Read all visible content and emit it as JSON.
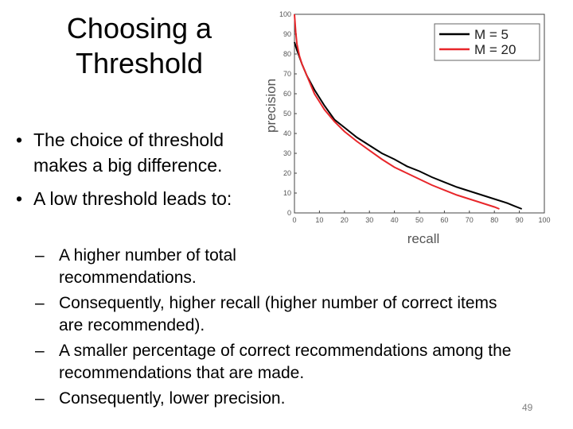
{
  "slide": {
    "title_line1": "Choosing a",
    "title_line2": "Threshold",
    "bullets": [
      "The choice of threshold makes a big difference.",
      "A low threshold leads to:"
    ],
    "subbullets": [
      "A higher number of total recommendations.",
      "Consequently, higher recall (higher number of correct items are recommended).",
      "A smaller percentage of correct recommendations among the recommendations that are made.",
      "Consequently, lower precision."
    ],
    "page_number": "49"
  },
  "chart_data": {
    "type": "line",
    "xlabel": "recall",
    "ylabel": "precision",
    "xlim": [
      0,
      100
    ],
    "ylim": [
      0,
      100
    ],
    "xticks": [
      "0",
      "10",
      "20",
      "30",
      "40",
      "50",
      "60",
      "70",
      "80",
      "90",
      "100"
    ],
    "yticks": [
      "0",
      "10",
      "20",
      "30",
      "40",
      "50",
      "60",
      "70",
      "80",
      "90",
      "100"
    ],
    "grid": false,
    "legend_position": "top-right",
    "series": [
      {
        "name": "M = 5",
        "color": "#000000",
        "x": [
          0,
          1,
          3,
          5,
          8,
          12,
          16,
          20,
          25,
          30,
          35,
          40,
          45,
          50,
          55,
          60,
          65,
          70,
          75,
          80,
          85,
          88,
          91
        ],
        "y": [
          86,
          82,
          75,
          69,
          62,
          54,
          47,
          43,
          38,
          34,
          30,
          27,
          23.5,
          21,
          18,
          15.5,
          13,
          11,
          9,
          7,
          5,
          3.5,
          2
        ]
      },
      {
        "name": "M = 20",
        "color": "#e8262a",
        "x": [
          0,
          0.5,
          1,
          2,
          3,
          5,
          8,
          12,
          16,
          20,
          25,
          30,
          35,
          40,
          45,
          50,
          55,
          60,
          65,
          70,
          75,
          80,
          82
        ],
        "y": [
          100,
          91,
          85,
          79,
          75,
          69,
          60,
          52,
          46,
          41,
          36,
          31.5,
          27,
          23,
          20,
          17,
          14,
          11.5,
          9,
          7,
          5,
          3,
          2
        ]
      }
    ]
  }
}
